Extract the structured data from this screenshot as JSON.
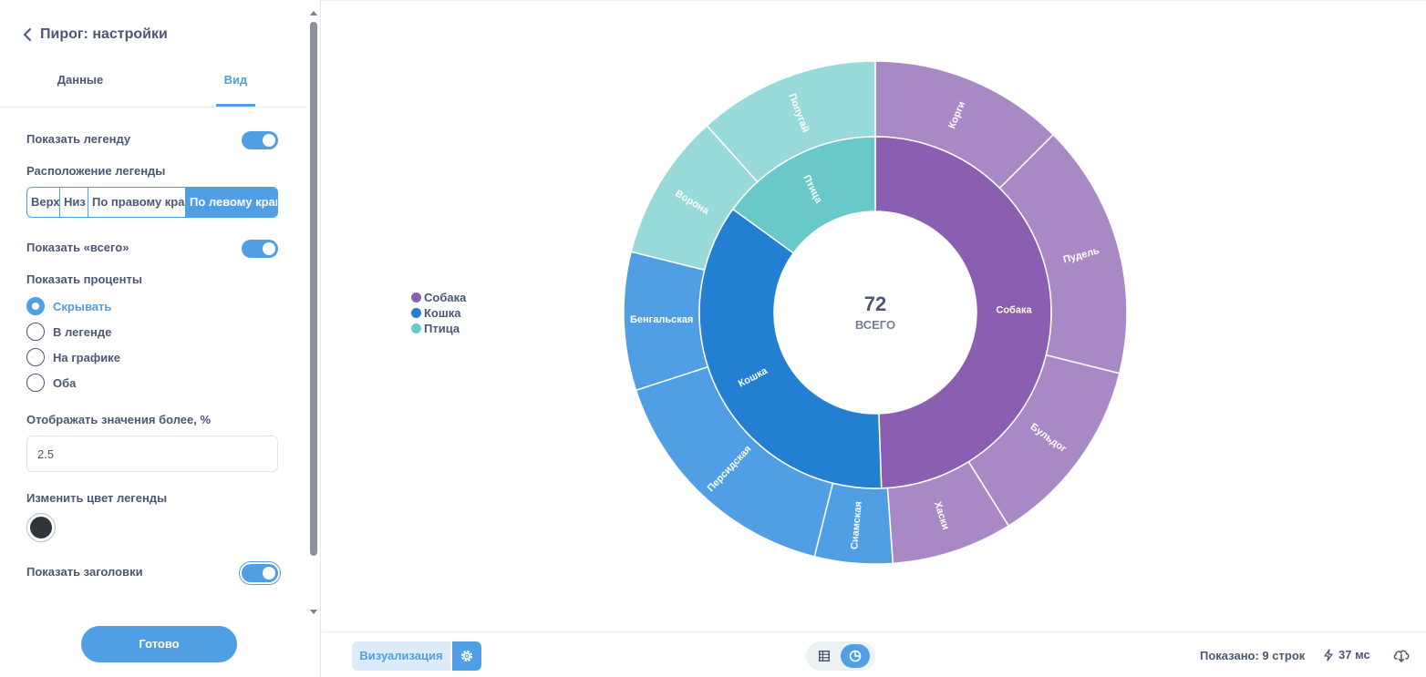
{
  "sidebar": {
    "title": "Пирог: настройки",
    "tabs": {
      "data": "Данные",
      "view": "Вид"
    },
    "show_legend_label": "Показать легенду",
    "legend_position_label": "Расположение легенды",
    "legend_position_options": [
      "Верх",
      "Низ",
      "По правому краю",
      "По левому краю"
    ],
    "legend_position_selected": "По левому краю",
    "show_total_label": "Показать «всего»",
    "show_percent_label": "Показать проценты",
    "percent_options": [
      "Скрывать",
      "В легенде",
      "На графике",
      "Оба"
    ],
    "percent_selected": "Скрывать",
    "threshold_label": "Отображать значения более, %",
    "threshold_value": "2.5",
    "legend_color_label": "Изменить цвет легенды",
    "legend_color": "#2e353b",
    "show_headers_label": "Показать заголовки",
    "done_label": "Готово"
  },
  "chart_data": {
    "type": "pie",
    "total_value": "72",
    "total_label": "ВСЕГО",
    "legend": [
      "Собака",
      "Кошка",
      "Птица"
    ],
    "inner_ring": [
      {
        "label": "Собака",
        "color": "#8a5eb0"
      },
      {
        "label": "Кошка",
        "color": "#227fd2"
      },
      {
        "label": "Птица",
        "color": "#69c8c8"
      }
    ],
    "outer_ring": [
      {
        "label": "Корги",
        "parent": "Собака",
        "color": "#a989c5"
      },
      {
        "label": "Пудель",
        "parent": "Собака",
        "color": "#a989c5"
      },
      {
        "label": "Бульдог",
        "parent": "Собака",
        "color": "#a989c5"
      },
      {
        "label": "Хаски",
        "parent": "Собака",
        "color": "#a989c5"
      },
      {
        "label": "Сиамская",
        "parent": "Кошка",
        "color": "#509ee3"
      },
      {
        "label": "Персидская",
        "parent": "Кошка",
        "color": "#509ee3"
      },
      {
        "label": "Бенгальская",
        "parent": "Кошка",
        "color": "#509ee3"
      },
      {
        "label": "Ворона",
        "parent": "Птица",
        "color": "#98d9d9"
      },
      {
        "label": "Попугай",
        "parent": "Птица",
        "color": "#98d9d9"
      }
    ]
  },
  "footer": {
    "visualization_label": "Визуализация",
    "shown_rows": "Показано: 9 строк",
    "timing": "37 мс"
  },
  "colors": {
    "accent": "#509ee3",
    "text": "#4c5773"
  },
  "icons": [
    "chevron-left-icon",
    "gear-icon",
    "table-icon",
    "chart-icon",
    "bolt-icon",
    "download-icon"
  ]
}
